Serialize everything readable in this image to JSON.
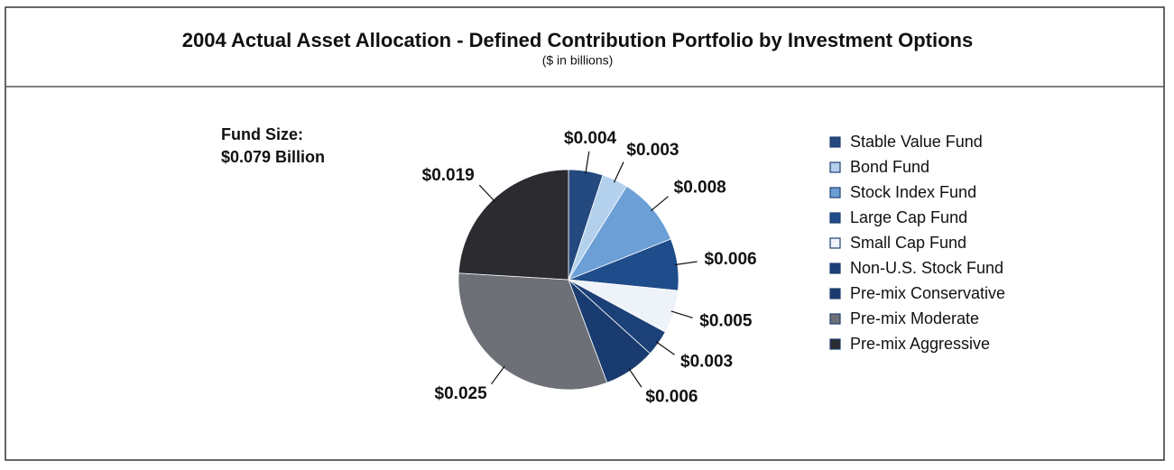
{
  "chart_data": {
    "type": "pie",
    "title": "2004 Actual Asset Allocation - Defined Contribution Portfolio by Investment Options",
    "subtitle": "($ in billions)",
    "annotations": [
      "Fund Size:",
      "$0.079 Billion"
    ],
    "categories": [
      "Stable Value Fund",
      "Bond Fund",
      "Stock Index Fund",
      "Large Cap Fund",
      "Small Cap Fund",
      "Non-U.S. Stock Fund",
      "Pre-mix Conservative",
      "Pre-mix Moderate",
      "Pre-mix Aggressive"
    ],
    "values": [
      0.004,
      0.003,
      0.008,
      0.006,
      0.005,
      0.003,
      0.006,
      0.025,
      0.019
    ],
    "value_labels": [
      "$0.004",
      "$0.003",
      "$0.008",
      "$0.006",
      "$0.005",
      "$0.003",
      "$0.006",
      "$0.025",
      "$0.019"
    ],
    "colors": [
      "#24497e",
      "#b3d0ec",
      "#6b9fd6",
      "#1f4c8a",
      "#eef3fa",
      "#1c4078",
      "#1a3b70",
      "#6d7077",
      "#2b2b30"
    ],
    "legend": "right"
  }
}
